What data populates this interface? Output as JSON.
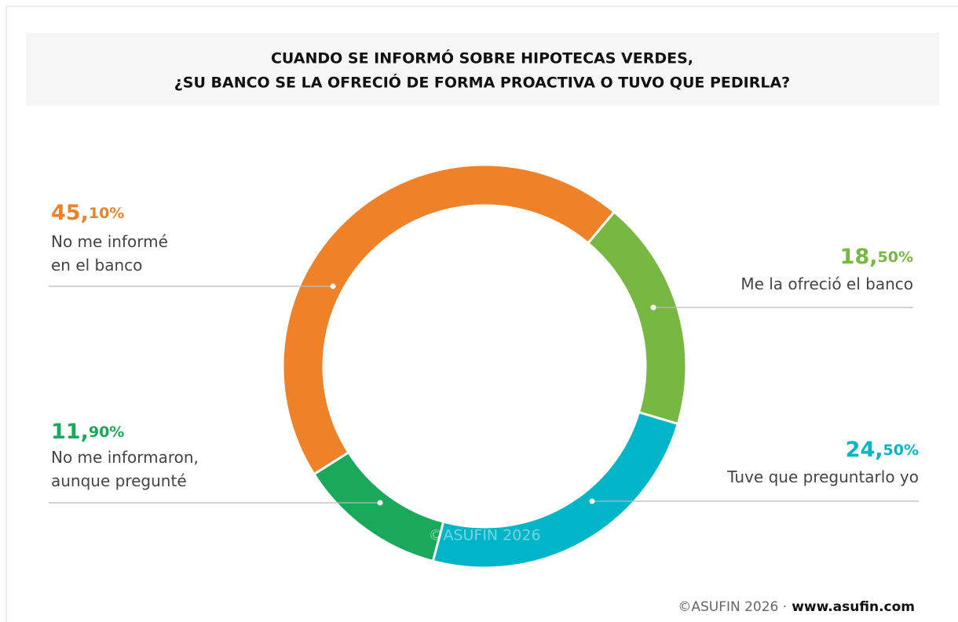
{
  "chart_data": {
    "type": "donut",
    "title": [
      "CUANDO SE INFORMÓ SOBRE HIPOTECAS VERDES,",
      "¿SU BANCO SE LA OFRECIÓ DE FORMA PROACTIVA O TUVO QUE PEDIRLA?"
    ],
    "categories": [
      "Me la ofreció el banco",
      "Tuve que preguntarlo yo",
      "No me informaron,\naunque pregunté",
      "No me informé\nen el banco"
    ],
    "values": [
      18.5,
      24.5,
      11.9,
      45.1
    ],
    "value_labels": [
      "18,50%",
      "24,50%",
      "11,90%",
      "45,10%"
    ],
    "colors": [
      "#77b843",
      "#00b5c8",
      "#1aa85a",
      "#ef8229"
    ],
    "watermark": "©ASUFIN 2026",
    "footer": {
      "text": "©ASUFIN 2026 ·",
      "url": "www.asufin.com"
    }
  }
}
